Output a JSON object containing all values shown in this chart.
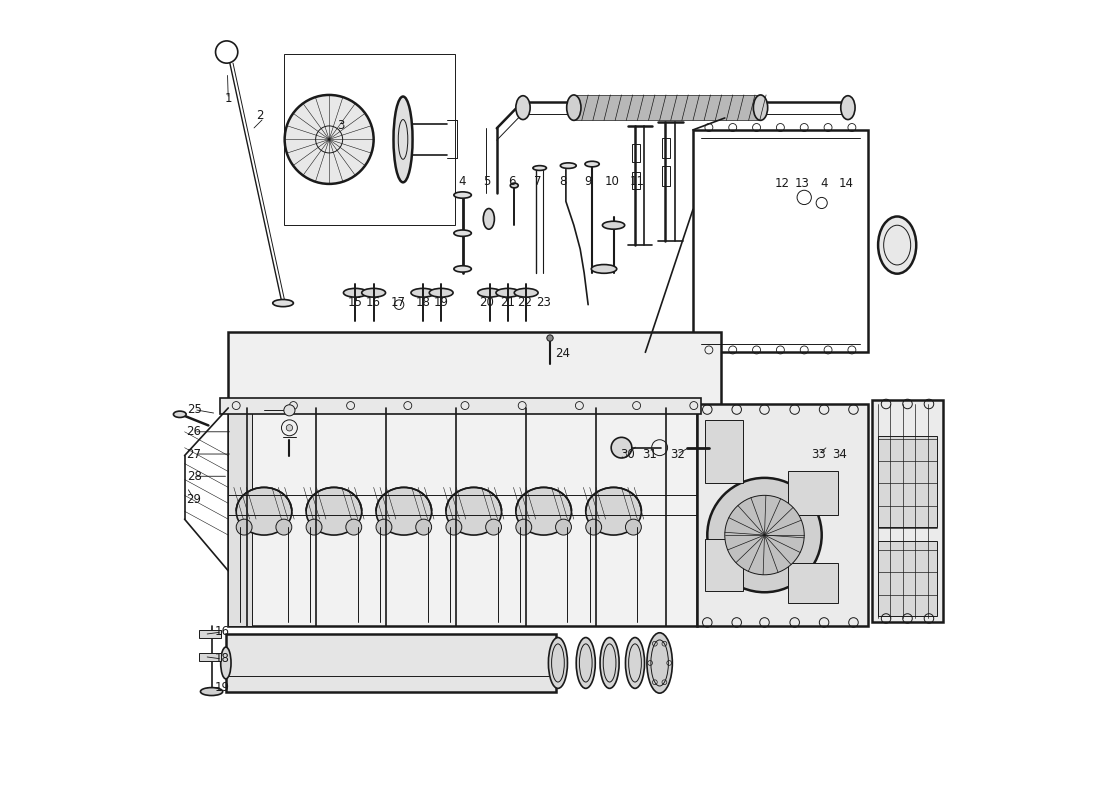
{
  "bg_color": "#ffffff",
  "line_color": "#1a1a1a",
  "watermark_color": "#c8d8e8",
  "label_color": "#1a1a1a",
  "label_fontsize": 8.5,
  "lw_main": 1.2,
  "lw_thin": 0.7,
  "lw_thick": 1.8
}
